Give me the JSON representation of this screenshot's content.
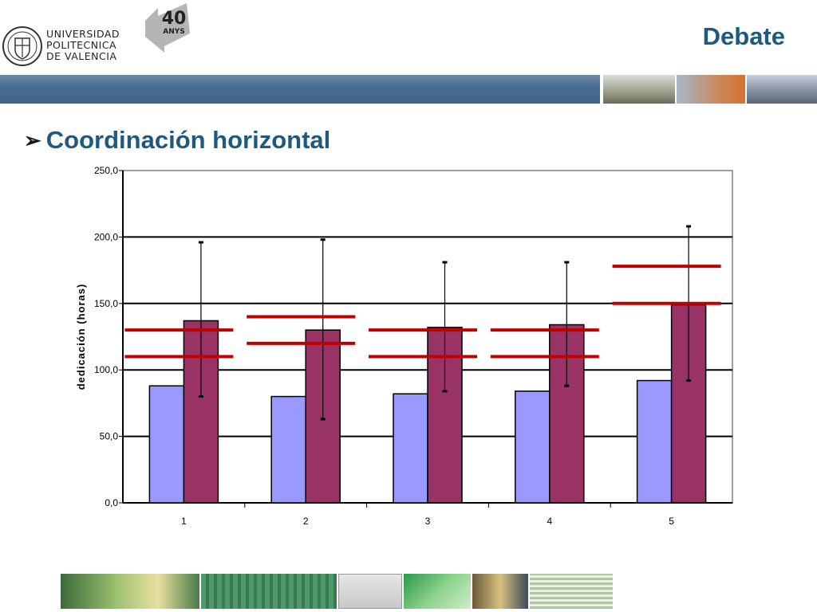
{
  "header": {
    "logo_lines": [
      "UNIVERSIDAD",
      "POLITECNICA",
      "DE VALENCIA"
    ],
    "anniversary_number": "40",
    "anniversary_word": "ANYS",
    "title": "Debate"
  },
  "section": {
    "bullet": "Coordinación horizontal"
  },
  "colors": {
    "title_blue": "#1f5a7e",
    "series_1": "#9999ff",
    "series_2": "#993366",
    "reference_lines": "#c00000"
  },
  "chart_data": {
    "type": "bar",
    "ylabel": "dedicación (horas)",
    "xlabel": "",
    "categories": [
      "1",
      "2",
      "3",
      "4",
      "5"
    ],
    "ylim": [
      0,
      250
    ],
    "yticks": [
      "0,0",
      "50,0",
      "100,0",
      "150,0",
      "200,0",
      "250,0"
    ],
    "grid": true,
    "series": [
      {
        "color": "#9999ff",
        "values": [
          88,
          80,
          82,
          84,
          92
        ]
      },
      {
        "color": "#993366",
        "values": [
          137,
          130,
          132,
          134,
          149
        ],
        "error_low": [
          80,
          63,
          84,
          88,
          92
        ],
        "error_high": [
          196,
          198,
          181,
          181,
          208
        ]
      }
    ],
    "reference_lines": [
      {
        "category": "1",
        "values": [
          110,
          130
        ]
      },
      {
        "category": "2",
        "values": [
          120,
          140
        ]
      },
      {
        "category": "3",
        "values": [
          110,
          130
        ]
      },
      {
        "category": "4",
        "values": [
          110,
          130
        ]
      },
      {
        "category": "5",
        "values": [
          150,
          178
        ]
      }
    ]
  }
}
